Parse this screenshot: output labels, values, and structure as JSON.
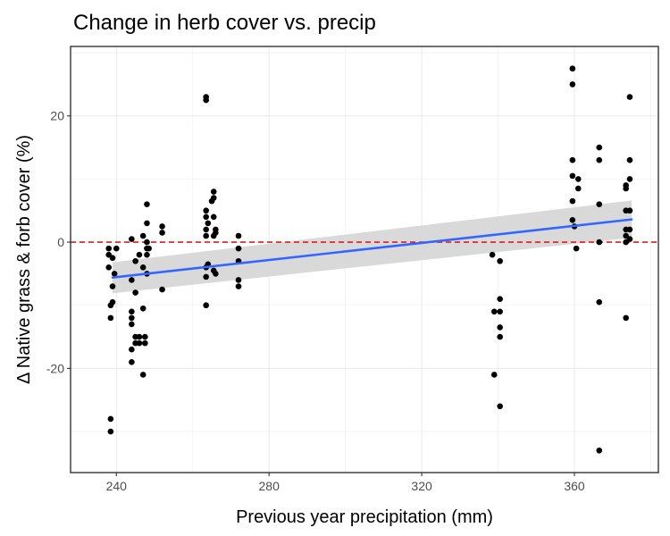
{
  "chart_data": {
    "type": "scatter",
    "title": "Change in herb cover vs. precip",
    "xlabel": "Previous year precipitation (mm)",
    "ylabel": "Δ Native grass & forb cover (%)",
    "xlim": [
      228,
      382
    ],
    "ylim": [
      -36.5,
      31
    ],
    "x_ticks": [
      240,
      280,
      320,
      360
    ],
    "y_ticks": [
      -20,
      0,
      20
    ],
    "x_tick_labels": [
      "240",
      "280",
      "320",
      "360"
    ],
    "y_tick_labels": [
      "-20",
      "0",
      "20"
    ],
    "grid": true,
    "legend": "none",
    "reference_line": {
      "y": 0,
      "style": "dashed",
      "color": "#e41a1c"
    },
    "trend": {
      "method": "linear fit with confidence band",
      "line_color": "#3366ff",
      "band_color": "#d9d9d9",
      "x": [
        239,
        375
      ],
      "y": [
        -5.6,
        3.6
      ],
      "band_lower": [
        -8.1,
        0.7
      ],
      "band_upper": [
        -3.2,
        6.6
      ]
    },
    "point_color": "#000000",
    "points": [
      {
        "x": 238,
        "y": -1
      },
      {
        "x": 238,
        "y": -2
      },
      {
        "x": 238,
        "y": -4
      },
      {
        "x": 238.5,
        "y": -10
      },
      {
        "x": 238.5,
        "y": -12
      },
      {
        "x": 238.5,
        "y": -28
      },
      {
        "x": 238.5,
        "y": -30
      },
      {
        "x": 239,
        "y": -2.5
      },
      {
        "x": 239,
        "y": -7
      },
      {
        "x": 239,
        "y": -9.5
      },
      {
        "x": 239.5,
        "y": -5
      },
      {
        "x": 240,
        "y": -1
      },
      {
        "x": 244,
        "y": 0.5
      },
      {
        "x": 244,
        "y": -6
      },
      {
        "x": 244,
        "y": -11
      },
      {
        "x": 244,
        "y": -12
      },
      {
        "x": 244,
        "y": -13
      },
      {
        "x": 244,
        "y": -17
      },
      {
        "x": 244,
        "y": -19
      },
      {
        "x": 245,
        "y": -3
      },
      {
        "x": 245,
        "y": -8
      },
      {
        "x": 245,
        "y": -15
      },
      {
        "x": 245,
        "y": -16
      },
      {
        "x": 246,
        "y": -2
      },
      {
        "x": 246,
        "y": -15
      },
      {
        "x": 246,
        "y": -16
      },
      {
        "x": 247,
        "y": 1
      },
      {
        "x": 247,
        "y": -4
      },
      {
        "x": 247,
        "y": -10.5
      },
      {
        "x": 247,
        "y": -21
      },
      {
        "x": 247.5,
        "y": -15
      },
      {
        "x": 247.5,
        "y": -16
      },
      {
        "x": 248,
        "y": 6
      },
      {
        "x": 248,
        "y": 3
      },
      {
        "x": 248,
        "y": 0
      },
      {
        "x": 248,
        "y": -1
      },
      {
        "x": 248,
        "y": -2
      },
      {
        "x": 248,
        "y": -5
      },
      {
        "x": 248.5,
        "y": -1
      },
      {
        "x": 252,
        "y": 2.5
      },
      {
        "x": 252,
        "y": 1.5
      },
      {
        "x": 252,
        "y": -7.5
      },
      {
        "x": 263.5,
        "y": 23
      },
      {
        "x": 263.5,
        "y": 22.5
      },
      {
        "x": 263.5,
        "y": 5
      },
      {
        "x": 263.5,
        "y": 4
      },
      {
        "x": 263.5,
        "y": 2
      },
      {
        "x": 263.5,
        "y": 1
      },
      {
        "x": 263.5,
        "y": -4
      },
      {
        "x": 263.5,
        "y": -5.5
      },
      {
        "x": 263.5,
        "y": -10
      },
      {
        "x": 264,
        "y": 3
      },
      {
        "x": 264,
        "y": -3.5
      },
      {
        "x": 265,
        "y": 6.5
      },
      {
        "x": 265.5,
        "y": 8
      },
      {
        "x": 265.5,
        "y": 7
      },
      {
        "x": 265.5,
        "y": 4
      },
      {
        "x": 265.5,
        "y": 1
      },
      {
        "x": 265.5,
        "y": -4.5
      },
      {
        "x": 266,
        "y": 2
      },
      {
        "x": 266,
        "y": -5
      },
      {
        "x": 266,
        "y": 1.5
      },
      {
        "x": 272,
        "y": 1
      },
      {
        "x": 272,
        "y": -1
      },
      {
        "x": 272,
        "y": -3
      },
      {
        "x": 272,
        "y": -6
      },
      {
        "x": 272,
        "y": -7
      },
      {
        "x": 338.5,
        "y": -2
      },
      {
        "x": 339,
        "y": -11
      },
      {
        "x": 339,
        "y": -21
      },
      {
        "x": 340.5,
        "y": -3
      },
      {
        "x": 340.5,
        "y": -9
      },
      {
        "x": 340.5,
        "y": -11
      },
      {
        "x": 340.5,
        "y": -13.5
      },
      {
        "x": 340.5,
        "y": -15
      },
      {
        "x": 340.5,
        "y": -26
      },
      {
        "x": 359.5,
        "y": 27.5
      },
      {
        "x": 359.5,
        "y": 25
      },
      {
        "x": 359.5,
        "y": 13
      },
      {
        "x": 359.5,
        "y": 10.5
      },
      {
        "x": 359.5,
        "y": 6.5
      },
      {
        "x": 359.5,
        "y": 3.5
      },
      {
        "x": 360,
        "y": 2.5
      },
      {
        "x": 360.5,
        "y": -1
      },
      {
        "x": 361,
        "y": 10
      },
      {
        "x": 361,
        "y": 8.5
      },
      {
        "x": 366.5,
        "y": 15
      },
      {
        "x": 366.5,
        "y": 13
      },
      {
        "x": 366.5,
        "y": 6
      },
      {
        "x": 366.5,
        "y": 0
      },
      {
        "x": 366.5,
        "y": -9.5
      },
      {
        "x": 366.5,
        "y": -33
      },
      {
        "x": 373.5,
        "y": 9
      },
      {
        "x": 373.5,
        "y": 8.5
      },
      {
        "x": 373.5,
        "y": 5
      },
      {
        "x": 373.5,
        "y": 2
      },
      {
        "x": 373.5,
        "y": 1
      },
      {
        "x": 373.5,
        "y": 0
      },
      {
        "x": 373.5,
        "y": -12
      },
      {
        "x": 374.5,
        "y": 23
      },
      {
        "x": 374.5,
        "y": 13
      },
      {
        "x": 374.5,
        "y": 10
      },
      {
        "x": 374.5,
        "y": 5
      },
      {
        "x": 374.5,
        "y": 2
      },
      {
        "x": 374.5,
        "y": 0.5
      }
    ]
  }
}
